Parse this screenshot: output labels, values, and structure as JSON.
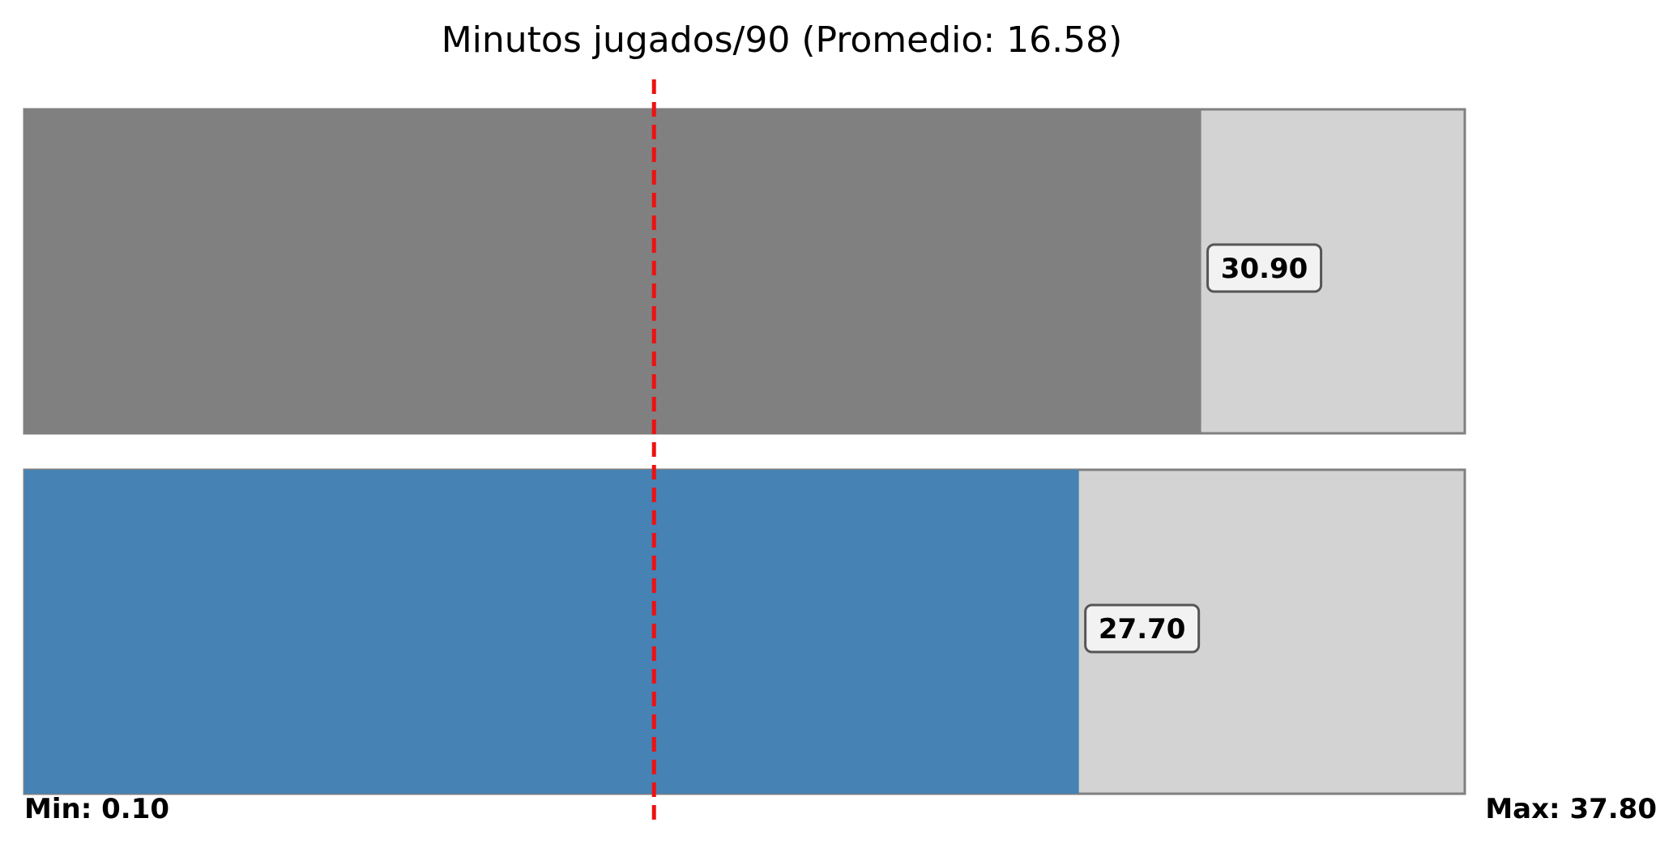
{
  "chart_data": {
    "type": "bar",
    "orientation": "horizontal",
    "title": "Minutos jugados/90 (Promedio: 16.58)",
    "average": 16.58,
    "xlim": [
      0.1,
      37.8
    ],
    "min_label": "Min: 0.10",
    "max_label": "Max: 37.80",
    "grid": false,
    "series": [
      {
        "value": 30.9,
        "label": "30.90",
        "color": "#808080"
      },
      {
        "value": 27.7,
        "label": "27.70",
        "color": "#4682b4"
      }
    ],
    "background_color": "#d3d3d3",
    "average_line_color": "#ee1111"
  }
}
